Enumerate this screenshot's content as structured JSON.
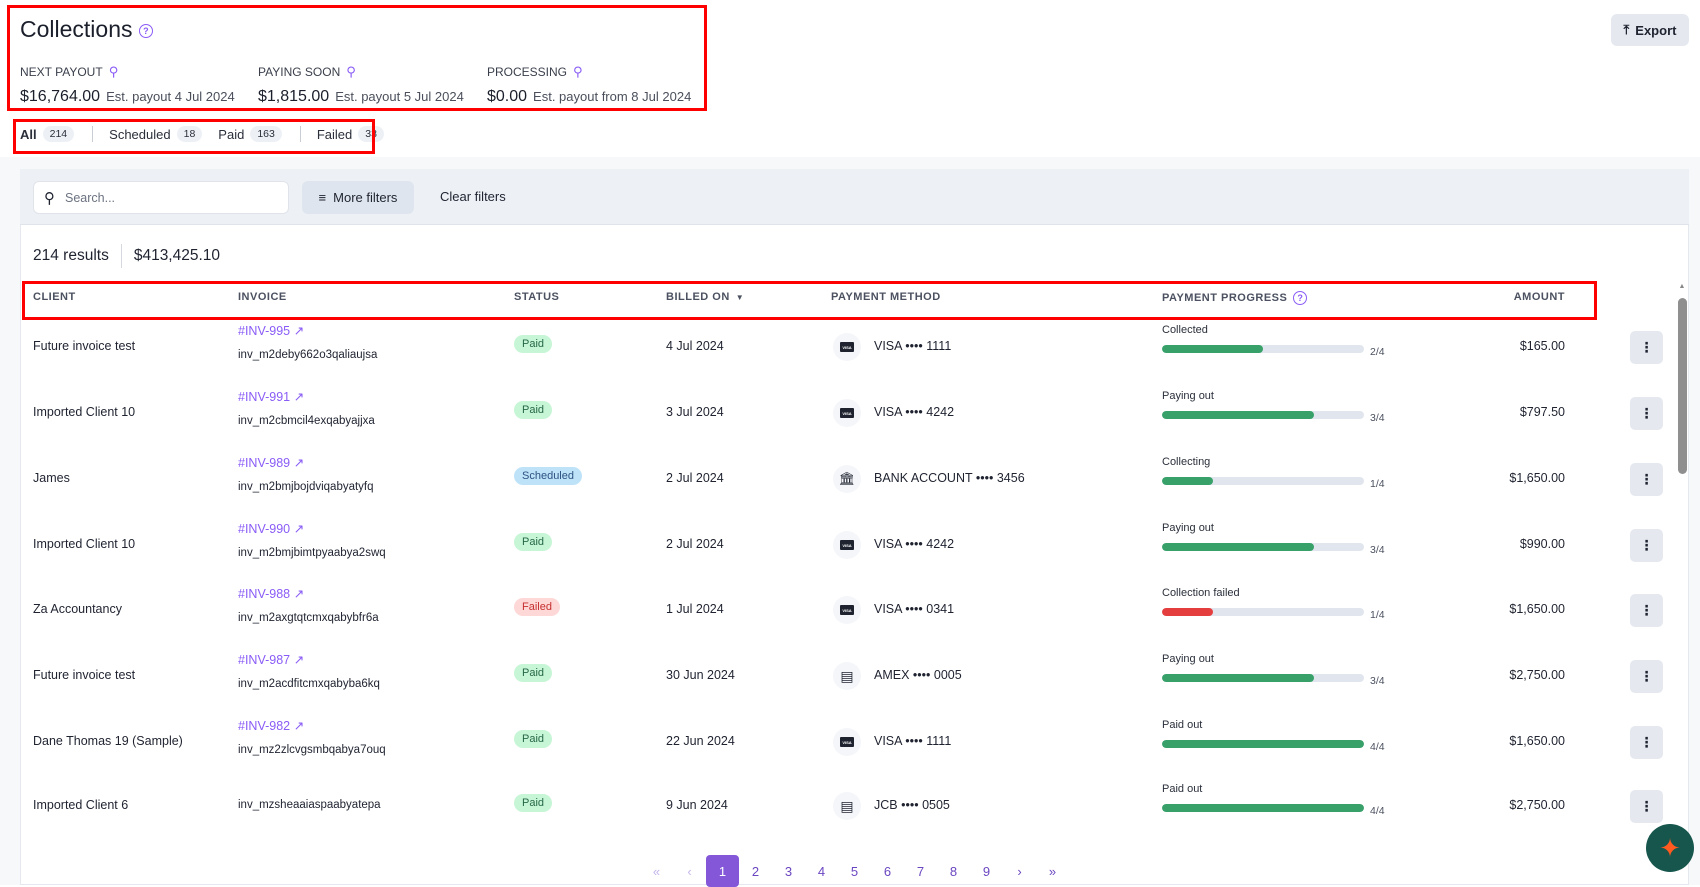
{
  "header": {
    "title": "Collections",
    "export_label": "Export"
  },
  "stats": [
    {
      "label": "NEXT PAYOUT",
      "amount": "$16,764.00",
      "note": "Est. payout 4 Jul 2024"
    },
    {
      "label": "PAYING SOON",
      "amount": "$1,815.00",
      "note": "Est. payout 5 Jul 2024"
    },
    {
      "label": "PROCESSING",
      "amount": "$0.00",
      "note": "Est. payout from 8 Jul 2024"
    }
  ],
  "tabs": [
    {
      "label": "All",
      "count": "214",
      "active": true
    },
    {
      "label": "Scheduled",
      "count": "18"
    },
    {
      "label": "Paid",
      "count": "163"
    },
    {
      "label": "Failed",
      "count": "33"
    }
  ],
  "filters": {
    "search_placeholder": "Search...",
    "more_filters": "More filters",
    "clear_filters": "Clear filters"
  },
  "summary": {
    "results": "214 results",
    "total": "$413,425.10"
  },
  "columns": {
    "client": "CLIENT",
    "invoice": "INVOICE",
    "status": "STATUS",
    "billed_on": "BILLED ON",
    "payment_method": "PAYMENT METHOD",
    "payment_progress": "PAYMENT PROGRESS",
    "amount": "AMOUNT"
  },
  "colors": {
    "accent": "#8a5cf6",
    "progress_green": "#38a169",
    "progress_red": "#e53e3e",
    "paid_bg": "#c6f6d5",
    "scheduled_bg": "#bee3f8",
    "failed_bg": "#fed7d7"
  },
  "rows": [
    {
      "client": "Future invoice test",
      "invoice": "#INV-995",
      "invoice_id": "inv_m2deby662o3qaliaujsa",
      "status": "Paid",
      "billed_on": "4 Jul 2024",
      "method_icon": "visa-icon",
      "method": "VISA •••• 1111",
      "progress_label": "Collected",
      "progress": 0.5,
      "progress_text": "2/4",
      "progress_state": "ok",
      "amount": "$165.00"
    },
    {
      "client": "Imported Client 10",
      "invoice": "#INV-991",
      "invoice_id": "inv_m2cbmcil4exqabyajjxa",
      "status": "Paid",
      "billed_on": "3 Jul 2024",
      "method_icon": "visa-icon",
      "method": "VISA •••• 4242",
      "progress_label": "Paying out",
      "progress": 0.75,
      "progress_text": "3/4",
      "progress_state": "ok",
      "amount": "$797.50"
    },
    {
      "client": "James",
      "invoice": "#INV-989",
      "invoice_id": "inv_m2bmjbojdviqabyatyfq",
      "status": "Scheduled",
      "billed_on": "2 Jul 2024",
      "method_icon": "bank-icon",
      "method": "BANK ACCOUNT •••• 3456",
      "progress_label": "Collecting",
      "progress": 0.25,
      "progress_text": "1/4",
      "progress_state": "ok",
      "amount": "$1,650.00"
    },
    {
      "client": "Imported Client 10",
      "invoice": "#INV-990",
      "invoice_id": "inv_m2bmjbimtpyaabya2swq",
      "status": "Paid",
      "billed_on": "2 Jul 2024",
      "method_icon": "visa-icon",
      "method": "VISA •••• 4242",
      "progress_label": "Paying out",
      "progress": 0.75,
      "progress_text": "3/4",
      "progress_state": "ok",
      "amount": "$990.00"
    },
    {
      "client": "Za Accountancy",
      "invoice": "#INV-988",
      "invoice_id": "inv_m2axgtqtcmxqabybfr6a",
      "status": "Failed",
      "billed_on": "1 Jul 2024",
      "method_icon": "visa-icon",
      "method": "VISA •••• 0341",
      "progress_label": "Collection failed",
      "progress": 0.25,
      "progress_text": "1/4",
      "progress_state": "failed",
      "amount": "$1,650.00"
    },
    {
      "client": "Future invoice test",
      "invoice": "#INV-987",
      "invoice_id": "inv_m2acdfitcmxqabyba6kq",
      "status": "Paid",
      "billed_on": "30 Jun 2024",
      "method_icon": "card-icon",
      "method": "AMEX •••• 0005",
      "progress_label": "Paying out",
      "progress": 0.75,
      "progress_text": "3/4",
      "progress_state": "ok",
      "amount": "$2,750.00"
    },
    {
      "client": "Dane Thomas 19 (Sample)",
      "invoice": "#INV-982",
      "invoice_id": "inv_mz2zlcvgsmbqabya7ouq",
      "status": "Paid",
      "billed_on": "22 Jun 2024",
      "method_icon": "visa-icon",
      "method": "VISA •••• 1111",
      "progress_label": "Paid out",
      "progress": 1,
      "progress_text": "4/4",
      "progress_state": "ok",
      "amount": "$1,650.00"
    },
    {
      "client": "Imported Client 6",
      "invoice": "",
      "invoice_id": "inv_mzsheaaiaspaabyatepa",
      "status": "Paid",
      "billed_on": "9 Jun 2024",
      "method_icon": "card-icon",
      "method": "JCB •••• 0505",
      "progress_label": "Paid out",
      "progress": 1,
      "progress_text": "4/4",
      "progress_state": "ok",
      "amount": "$2,750.00"
    }
  ],
  "pagination": {
    "first": "«",
    "prev": "‹",
    "pages": [
      "1",
      "2",
      "3",
      "4",
      "5",
      "6",
      "7",
      "8",
      "9"
    ],
    "current": "1",
    "next": "›",
    "last": "»"
  }
}
